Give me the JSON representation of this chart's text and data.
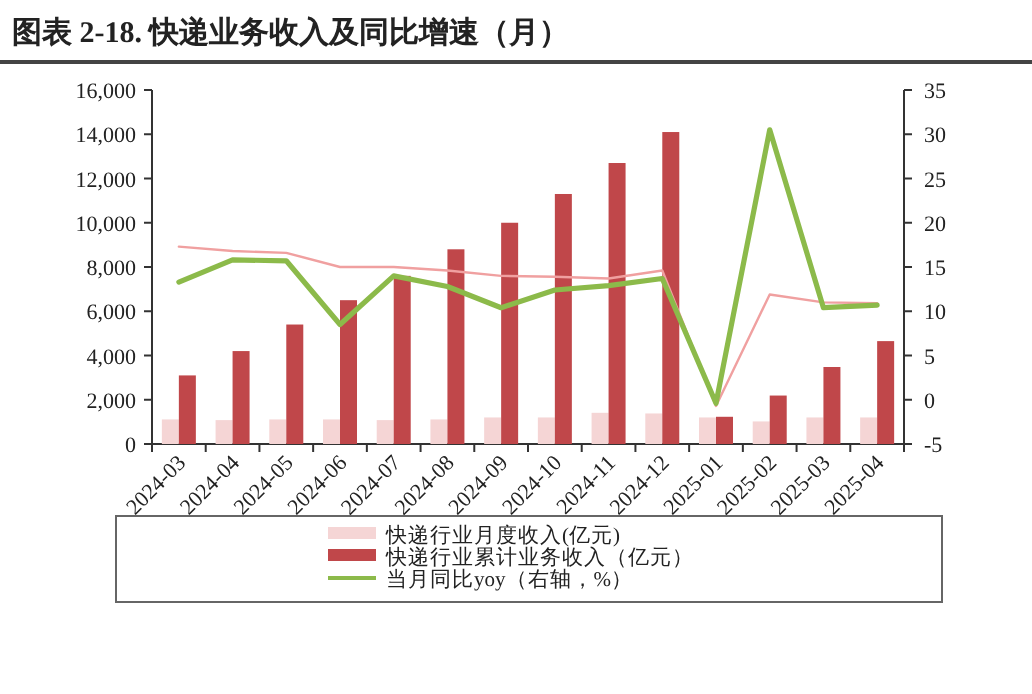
{
  "chart_data": {
    "type": "bar",
    "title": "图表 2-18. 快递业务收入及同比增速（月）",
    "categories": [
      "2024-03",
      "2024-04",
      "2024-05",
      "2024-06",
      "2024-07",
      "2024-08",
      "2024-09",
      "2024-10",
      "2024-11",
      "2024-12",
      "2025-01",
      "2025-02",
      "2025-03",
      "2025-04"
    ],
    "series": [
      {
        "name": "快递行业月度收入(亿元)",
        "color": "#f5d5d5",
        "values": [
          1110,
          1080,
          1110,
          1110,
          1080,
          1110,
          1200,
          1200,
          1410,
          1380,
          1200,
          1020,
          1200,
          1200
        ]
      },
      {
        "name": "快递行业累计业务收入（亿元）",
        "color": "#c0474a",
        "values": [
          3100,
          4200,
          5400,
          6500,
          7600,
          8800,
          10000,
          11300,
          12700,
          14100,
          1230,
          2190,
          3480,
          4650
        ]
      },
      {
        "name": "当月同比yoy（右轴，%）",
        "type": "line",
        "axis": "y2",
        "color": "#8cba4a",
        "values": [
          13.3,
          15.8,
          15.7,
          8.5,
          14.0,
          12.8,
          10.4,
          12.4,
          12.9,
          13.7,
          -0.4,
          30.5,
          10.4,
          10.7
        ]
      },
      {
        "type": "line",
        "axis": "y2",
        "color": "#f0a0a0",
        "values": [
          17.3,
          16.8,
          16.6,
          15.0,
          15.0,
          14.6,
          14.0,
          13.9,
          13.7,
          14.6,
          -0.7,
          11.9,
          11.0,
          10.9
        ]
      }
    ],
    "ylim": [
      0,
      16000
    ],
    "yticks": [
      {
        "value": 0,
        "label": "0"
      },
      {
        "value": 2000,
        "label": "2,000"
      },
      {
        "value": 4000,
        "label": "4,000"
      },
      {
        "value": 6000,
        "label": "6,000"
      },
      {
        "value": 8000,
        "label": "8,000"
      },
      {
        "value": 10000,
        "label": "10,000"
      },
      {
        "value": 12000,
        "label": "12,000"
      },
      {
        "value": 14000,
        "label": "14,000"
      },
      {
        "value": 16000,
        "label": "16,000"
      }
    ],
    "y2lim": [
      -5,
      35
    ],
    "y2ticks": [
      -5,
      0,
      5,
      10,
      15,
      20,
      25,
      30,
      35
    ],
    "legend": "bottom",
    "grid": false
  }
}
